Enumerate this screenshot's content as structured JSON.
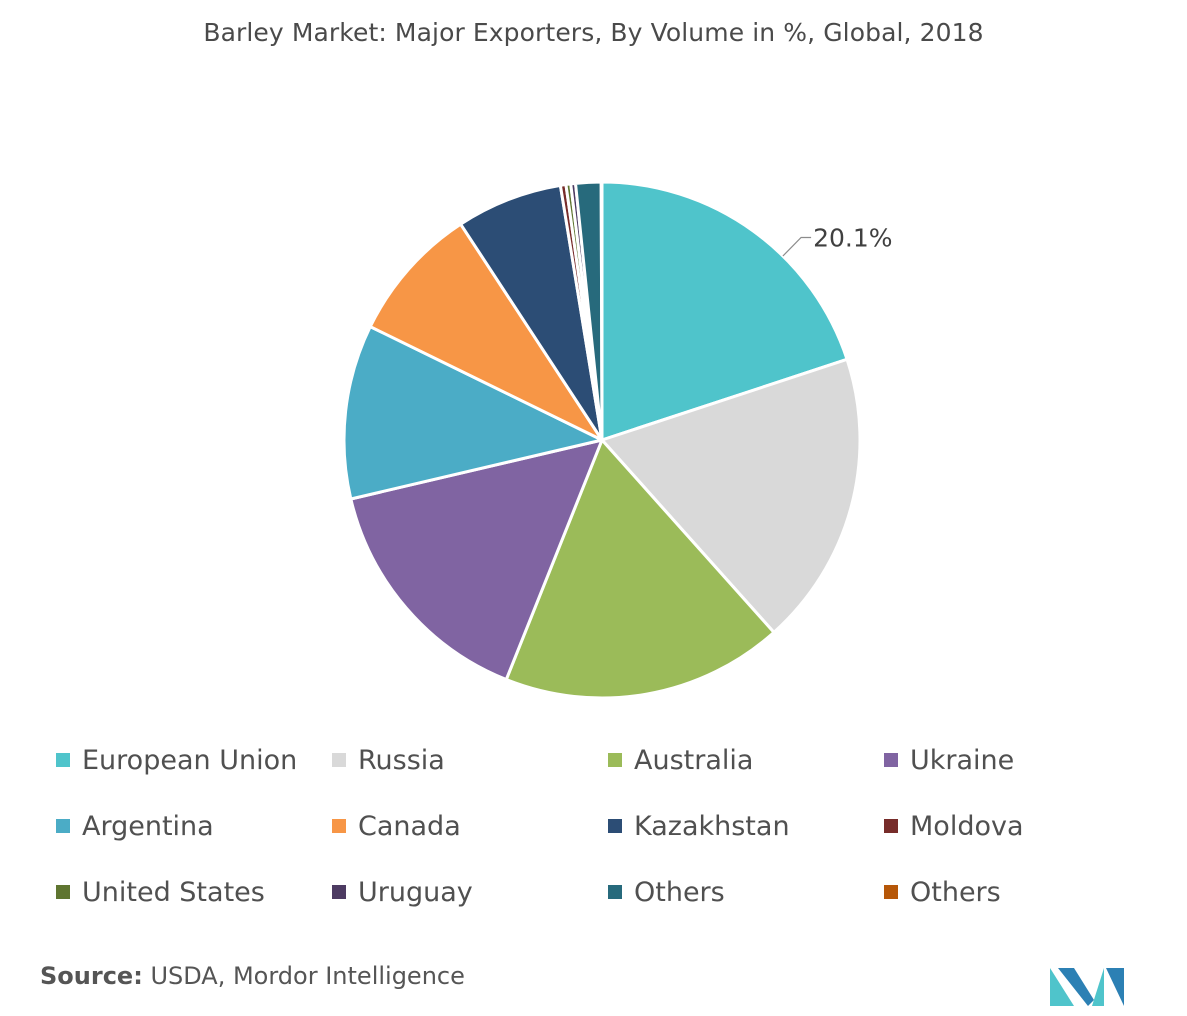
{
  "title": "Barley Market: Major Exporters, By Volume in %, Global, 2018",
  "source": {
    "label": "Source:",
    "text": "USDA, Mordor Intelligence"
  },
  "chart_data": {
    "type": "pie",
    "title": "Barley Market: Major Exporters, By Volume in %, Global, 2018",
    "start_angle_deg": 0,
    "direction": "clockwise",
    "legend_position": "bottom",
    "slices": [
      {
        "label": "European Union",
        "value": 20.1,
        "color": "#4fc4cb",
        "data_label": "20.1%"
      },
      {
        "label": "Russia",
        "value": 18.6,
        "color": "#d9d9d9",
        "data_label": ""
      },
      {
        "label": "Australia",
        "value": 17.8,
        "color": "#9bbb59",
        "data_label": ""
      },
      {
        "label": "Ukraine",
        "value": 15.4,
        "color": "#8064a2",
        "data_label": ""
      },
      {
        "label": "Argentina",
        "value": 11.0,
        "color": "#4bacc6",
        "data_label": ""
      },
      {
        "label": "Canada",
        "value": 8.6,
        "color": "#f79646",
        "data_label": ""
      },
      {
        "label": "Kazakhstan",
        "value": 6.7,
        "color": "#2c4d75",
        "data_label": ""
      },
      {
        "label": "Moldova",
        "value": 0.35,
        "color": "#772c2a",
        "data_label": ""
      },
      {
        "label": "United States",
        "value": 0.3,
        "color": "#5f7530",
        "data_label": ""
      },
      {
        "label": "Uruguay",
        "value": 0.3,
        "color": "#4d3b62",
        "data_label": ""
      },
      {
        "label": "Others",
        "value": 1.6,
        "color": "#276a7c",
        "data_label": ""
      },
      {
        "label": "Others",
        "value": 0.05,
        "color": "#b65708",
        "data_label": ""
      }
    ]
  },
  "logo": {
    "icon": "mordor-intelligence-logo",
    "colors": [
      "#4fc4cb",
      "#2c80b4"
    ]
  }
}
